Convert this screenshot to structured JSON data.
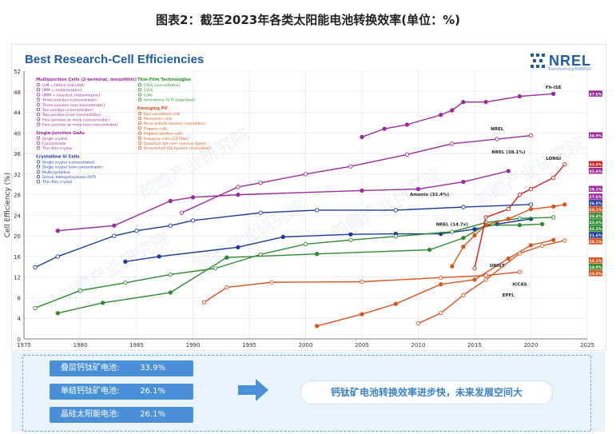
{
  "page": {
    "title": "图表2：截至2023年各类太阳能电池转换效率(单位：%)",
    "chart_heading": "Best Research-Cell Efficiencies",
    "logo": "NREL",
    "logo_sub": "Transforming ENERGY",
    "watermark": "前瞻产业研究院",
    "summary": [
      {
        "label": "叠层钙钛矿电池:",
        "value": "33.9%"
      },
      {
        "label": "单结钙钛矿电池:",
        "value": "26.1%"
      },
      {
        "label": "晶硅太阳能电池:",
        "value": "26.1%"
      }
    ],
    "conclusion": "钙钛矿电池转换效率进步快，未来发展空间大"
  },
  "colors": {
    "multijunction": "#9c2a9c",
    "gaas": "#9c2a9c",
    "silicon": "#1a3a9c",
    "thinfilm": "#2e8b2e",
    "emerging": "#d9541e",
    "perovskite_si": "#d81b1b",
    "heading_blue": "#1f5ca8",
    "pill_blue": "#4a90d9"
  },
  "legend": {
    "groups": [
      {
        "name": "Multijunction Cells (2-terminal, monolithic)",
        "color": "#9c2a9c",
        "col": 0,
        "items": [
          "(LM = lattice matched)",
          "(MM = metamorphic)",
          "(IMM = inverted, metamorphic)",
          "Three-junction (concentrator)",
          "Three-junction (non-concentrator)",
          "Two-junction (concentrator)",
          "Two-junction (non-concentrator)",
          "Four-junction or more (concentrator)",
          "Four-junction or more (non-concentrator)"
        ]
      },
      {
        "name": "Single-Junction GaAs",
        "color": "#9c2a9c",
        "col": 0,
        "items": [
          "Single crystal",
          "Concentrator",
          "Thin-film crystal"
        ]
      },
      {
        "name": "Crystalline Si Cells",
        "color": "#1a3a9c",
        "col": 0,
        "items": [
          "Single crystal (concentrator)",
          "Single crystal (non-concentrator)",
          "Multicrystalline",
          "Silicon heterostructures (HIT)",
          "Thin-film crystal"
        ]
      },
      {
        "name": "Thin-Film Technologies",
        "color": "#2e8b2e",
        "col": 1,
        "items": [
          "CIGS (concentrator)",
          "CIGS",
          "CdTe",
          "Amorphous Si:H (stabilized)"
        ]
      },
      {
        "name": "Emerging PV",
        "color": "#d9541e",
        "col": 1,
        "items": [
          "Dye-sensitized cells",
          "Perovskite cells",
          "Perovskite/Si tandem (monolithic)",
          "Organic cells",
          "Organic tandem cells",
          "Inorganic cells (CZTSSe)",
          "Quantum dot cells (various types)",
          "Perovskite/CIGS tandem (monolithic)"
        ]
      }
    ]
  },
  "chart_data": {
    "type": "line",
    "title": "Best Research-Cell Efficiencies",
    "xlabel": "",
    "ylabel": "Cell Efficiency (%)",
    "xlim": [
      1975,
      2025
    ],
    "ylim": [
      0,
      52
    ],
    "xticks": [
      1975,
      1980,
      1985,
      1990,
      1995,
      2000,
      2005,
      2010,
      2015,
      2020,
      2025
    ],
    "yticks": [
      0,
      4,
      8,
      12,
      16,
      20,
      24,
      28,
      32,
      36,
      40,
      44,
      48,
      52
    ],
    "grid": true,
    "series": [
      {
        "color": "#9c2a9c",
        "x": [
          2005,
          2007,
          2009,
          2012,
          2013,
          2014,
          2016,
          2019,
          2022
        ],
        "y": [
          39.2,
          40.8,
          41.6,
          43.5,
          44.4,
          46.0,
          46.0,
          47.1,
          47.6
        ]
      },
      {
        "color": "#9c2a9c",
        "x": [
          1989,
          1994,
          1996,
          2000,
          2004,
          2009,
          2013,
          2017,
          2020
        ],
        "y": [
          24.5,
          29.5,
          30.3,
          32.0,
          33.5,
          35.8,
          37.9,
          38.8,
          39.5
        ]
      },
      {
        "color": "#9c2a9c",
        "x": [
          1978,
          1983,
          1988,
          1990,
          1994,
          2005,
          2010,
          2014,
          2018
        ],
        "y": [
          21.0,
          22.0,
          26.8,
          27.5,
          28.0,
          28.8,
          29.1,
          30.5,
          32.6
        ]
      },
      {
        "color": "#1a3a9c",
        "x": [
          1976,
          1978,
          1983,
          1985,
          1988,
          1990,
          1996,
          2001,
          2008,
          2014,
          2020
        ],
        "y": [
          13.9,
          16.0,
          20.0,
          21.0,
          22.0,
          23.0,
          24.5,
          25.0,
          25.0,
          25.6,
          26.1
        ]
      },
      {
        "color": "#1a3a9c",
        "x": [
          1984,
          1987,
          1994,
          1998,
          2004,
          2008,
          2012,
          2015,
          2017,
          2020
        ],
        "y": [
          15.0,
          16.0,
          17.8,
          19.8,
          20.3,
          20.4,
          20.4,
          21.3,
          22.3,
          23.3
        ]
      },
      {
        "color": "#2e8b2e",
        "x": [
          1976,
          1980,
          1984,
          1988,
          1992,
          1996,
          2000,
          2004,
          2008,
          2013,
          2016,
          2019,
          2022
        ],
        "y": [
          6.0,
          9.4,
          10.9,
          12.5,
          13.7,
          16.4,
          18.4,
          19.2,
          19.9,
          20.8,
          22.6,
          23.4,
          23.6
        ]
      },
      {
        "color": "#2e8b2e",
        "x": [
          1978,
          1982,
          1988,
          1993,
          2001,
          2011,
          2014,
          2016,
          2019,
          2021
        ],
        "y": [
          5.0,
          7.0,
          9.0,
          15.8,
          16.5,
          17.3,
          19.6,
          22.1,
          22.1,
          22.3
        ]
      },
      {
        "color": "#d9541e",
        "x": [
          1991,
          1993,
          1997,
          2005,
          2012,
          2016,
          2019
        ],
        "y": [
          7.1,
          10.0,
          11.0,
          11.1,
          11.9,
          12.3,
          13.0
        ]
      },
      {
        "color": "#d9541e",
        "x": [
          2013,
          2014,
          2015,
          2016,
          2018,
          2020,
          2022,
          2023
        ],
        "y": [
          14.1,
          17.9,
          20.1,
          22.1,
          23.3,
          25.2,
          25.7,
          26.1
        ]
      },
      {
        "color": "#d81b1b",
        "x": [
          2015,
          2016,
          2018,
          2019,
          2020,
          2022,
          2023
        ],
        "y": [
          13.7,
          23.6,
          25.2,
          28.0,
          29.1,
          31.3,
          33.9
        ]
      },
      {
        "color": "#d9541e",
        "x": [
          2001,
          2005,
          2008,
          2012,
          2015,
          2018,
          2020,
          2022
        ],
        "y": [
          2.5,
          4.8,
          6.8,
          10.6,
          11.5,
          15.6,
          18.2,
          19.2
        ]
      },
      {
        "color": "#d9541e",
        "x": [
          2010,
          2012,
          2014,
          2016,
          2019,
          2021,
          2023
        ],
        "y": [
          3.0,
          5.0,
          8.5,
          11.5,
          16.6,
          18.1,
          19.1
        ]
      }
    ],
    "right_labels": [
      {
        "text": "47.6%",
        "y": 47.6,
        "color": "#9c2a9c"
      },
      {
        "text": "39.5%",
        "y": 39.5,
        "color": "#9c2a9c"
      },
      {
        "text": "33.9%",
        "y": 33.9,
        "color": "#d81b1b"
      },
      {
        "text": "32.6%",
        "y": 32.6,
        "color": "#9c2a9c"
      },
      {
        "text": "29.1%",
        "y": 29.1,
        "color": "#9c2a9c"
      },
      {
        "text": "27.6%",
        "y": 27.6,
        "color": "#9c2a9c"
      },
      {
        "text": "26.8%",
        "y": 26.8,
        "color": "#1a3a9c"
      },
      {
        "text": "26.1%",
        "y": 26.1,
        "color": "#d9541e"
      },
      {
        "text": "24.4%",
        "y": 24.4,
        "color": "#2e8b2e"
      },
      {
        "text": "23.6%",
        "y": 23.6,
        "color": "#2e8b2e"
      },
      {
        "text": "22.3%",
        "y": 22.3,
        "color": "#2e8b2e"
      },
      {
        "text": "21.6%",
        "y": 21.6,
        "color": "#1a3a9c"
      },
      {
        "text": "19.1%",
        "y": 19.1,
        "color": "#d9541e"
      },
      {
        "text": "15.2%",
        "y": 15.2,
        "color": "#d9541e"
      },
      {
        "text": "14.0%",
        "y": 14.0,
        "color": "#2e8b2e"
      },
      {
        "text": "13.0%",
        "y": 13.0,
        "color": "#d9541e"
      }
    ],
    "annotations": [
      {
        "text": "Fh-ISE",
        "x": 2022,
        "y": 48.6
      },
      {
        "text": "NREL",
        "x": 2017,
        "y": 40.5
      },
      {
        "text": "NREL (38.1%)",
        "x": 2018,
        "y": 36.0
      },
      {
        "text": "LONGi",
        "x": 2022,
        "y": 34.8
      },
      {
        "text": "Amonix (32.4%)",
        "x": 2011,
        "y": 27.8
      },
      {
        "text": "NREL (14.7x)",
        "x": 2013,
        "y": 22.0
      },
      {
        "text": "UNIST",
        "x": 2017,
        "y": 14.0
      },
      {
        "text": "ICCAS",
        "x": 2019,
        "y": 10.3
      },
      {
        "text": "EPFL",
        "x": 2018,
        "y": 8.2
      }
    ]
  }
}
